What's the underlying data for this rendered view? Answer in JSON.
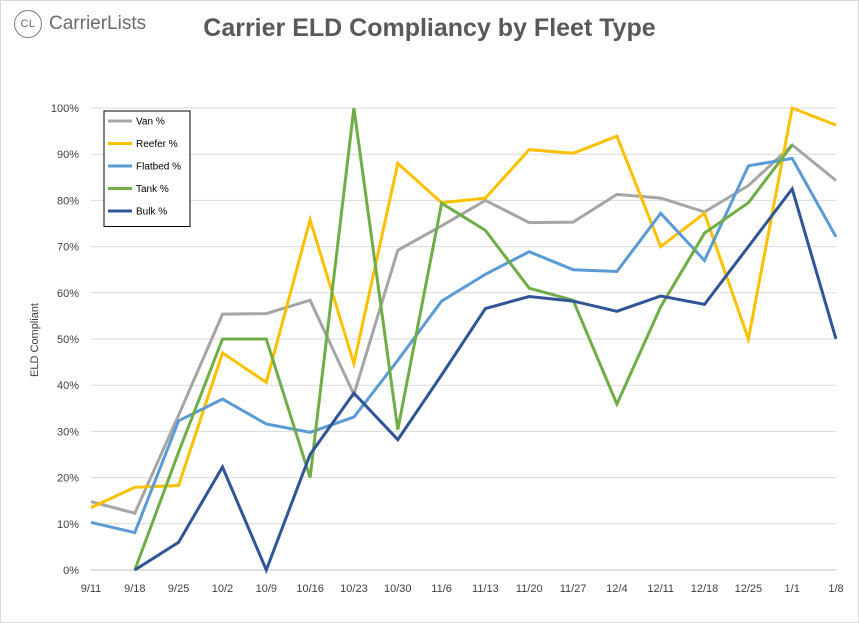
{
  "logo": {
    "badge": "CL",
    "name": "CarrierLists"
  },
  "chart_data": {
    "type": "line",
    "title": "Carrier ELD Compliancy by Fleet Type",
    "xlabel": "",
    "ylabel": "ELD Compliant",
    "ylim": [
      0,
      100
    ],
    "y_ticks": [
      "0%",
      "10%",
      "20%",
      "30%",
      "40%",
      "50%",
      "60%",
      "70%",
      "80%",
      "90%",
      "100%"
    ],
    "grid": "horizontal",
    "legend_position": "top-left",
    "categories": [
      "9/11",
      "9/18",
      "9/25",
      "10/2",
      "10/9",
      "10/16",
      "10/23",
      "10/30",
      "11/6",
      "11/13",
      "11/20",
      "11/27",
      "12/4",
      "12/11",
      "12/18",
      "12/25",
      "1/1",
      "1/8"
    ],
    "series": [
      {
        "name": "Van %",
        "color": "#a5a5a5",
        "values": [
          14.8,
          12.3,
          33.5,
          55.4,
          55.5,
          58.4,
          38.0,
          69.2,
          74.5,
          80.0,
          75.2,
          75.3,
          81.3,
          80.5,
          77.5,
          83.2,
          92.0,
          84.3
        ]
      },
      {
        "name": "Reefer %",
        "color": "#ffc000",
        "values": [
          13.5,
          17.9,
          18.3,
          47.0,
          40.6,
          75.8,
          44.7,
          88.0,
          79.5,
          80.5,
          91.0,
          90.2,
          93.9,
          70.0,
          77.2,
          50.0,
          100.0,
          96.3
        ]
      },
      {
        "name": "Flatbed %",
        "color": "#5b9bd5",
        "values": [
          10.3,
          8.1,
          32.3,
          37.0,
          31.6,
          29.8,
          33.1,
          45.4,
          58.2,
          64.0,
          68.9,
          65.0,
          64.6,
          77.2,
          67.0,
          87.5,
          89.1,
          72.1
        ]
      },
      {
        "name": "Tank %",
        "color": "#70ad47",
        "values": [
          null,
          0.0,
          25.5,
          50.0,
          50.0,
          20.0,
          100.0,
          30.4,
          79.4,
          73.5,
          61.0,
          58.4,
          35.9,
          57.0,
          72.9,
          79.5,
          92.0,
          null
        ]
      },
      {
        "name": "Bulk %",
        "color": "#2f5597",
        "values": [
          null,
          0.0,
          6.0,
          22.3,
          0.0,
          25.0,
          38.3,
          28.2,
          42.2,
          56.6,
          59.2,
          58.2,
          56.0,
          59.3,
          57.5,
          70.0,
          82.5,
          50.0
        ]
      }
    ]
  }
}
